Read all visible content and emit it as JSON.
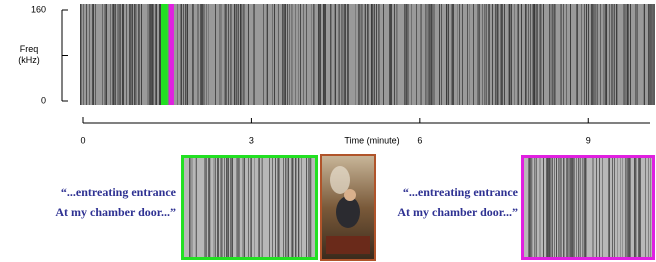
{
  "chart_data": {
    "type": "spectrogram",
    "ylabel": "Freq (kHz)",
    "xlabel": "Time (minute)",
    "ylim": [
      0,
      160
    ],
    "yticks": [
      0,
      160
    ],
    "xlim": [
      0,
      10.1
    ],
    "xticks": [
      0,
      3,
      6,
      9
    ],
    "highlights": [
      {
        "color": "#22e022",
        "start": 1.39,
        "end": 1.51
      },
      {
        "color": "#e020e0",
        "start": 1.53,
        "end": 1.62
      }
    ]
  },
  "excerpts": [
    {
      "color": "#22e022",
      "lines": [
        "“...entreating entrance",
        "At my chamber door...”"
      ]
    },
    {
      "color": "#e020e0",
      "lines": [
        "“...entreating entrance",
        "At my chamber door...”"
      ]
    }
  ]
}
